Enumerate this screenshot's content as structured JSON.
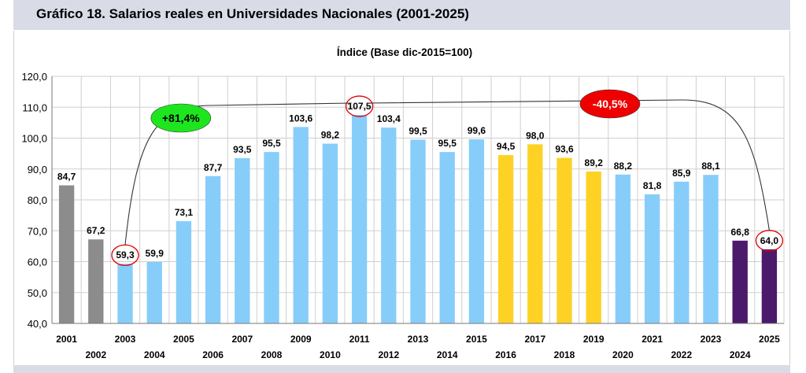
{
  "header": {
    "title": "Gráfico 18. Salarios reales en Universidades Nacionales (2001-2025)"
  },
  "chart_data": {
    "type": "bar",
    "title": "Índice (Base dic-2015=100)",
    "xlabel": "",
    "ylabel": "",
    "ylim": [
      40,
      120
    ],
    "ytick_step": 10,
    "ytick_labels": [
      "40,0",
      "50,0",
      "60,0",
      "70,0",
      "80,0",
      "90,0",
      "100,0",
      "110,0",
      "120,0"
    ],
    "grid": true,
    "categories": [
      "2001",
      "2002",
      "2003",
      "2004",
      "2005",
      "2006",
      "2007",
      "2008",
      "2009",
      "2010",
      "2011",
      "2012",
      "2013",
      "2014",
      "2015",
      "2016",
      "2017",
      "2018",
      "2019",
      "2020",
      "2021",
      "2022",
      "2023",
      "2024",
      "2025"
    ],
    "values": [
      84.7,
      67.2,
      59.3,
      59.9,
      73.1,
      87.7,
      93.5,
      95.5,
      103.6,
      98.2,
      107.5,
      103.4,
      99.5,
      95.5,
      99.6,
      94.5,
      98.0,
      93.6,
      89.2,
      88.2,
      81.8,
      85.9,
      88.1,
      66.8,
      64.0
    ],
    "value_labels": [
      "84,7",
      "67,2",
      "59,3",
      "59,9",
      "73,1",
      "87,7",
      "93,5",
      "95,5",
      "103,6",
      "98,2",
      "107,5",
      "103,4",
      "99,5",
      "95,5",
      "99,6",
      "94,5",
      "98,0",
      "93,6",
      "89,2",
      "88,2",
      "81,8",
      "85,9",
      "88,1",
      "66,8",
      "64,0"
    ],
    "bar_colors": [
      "#8c8c8c",
      "#8c8c8c",
      "#87cdfa",
      "#87cdfa",
      "#87cdfa",
      "#87cdfa",
      "#87cdfa",
      "#87cdfa",
      "#87cdfa",
      "#87cdfa",
      "#87cdfa",
      "#87cdfa",
      "#87cdfa",
      "#87cdfa",
      "#87cdfa",
      "#fdd224",
      "#fdd224",
      "#fdd224",
      "#fdd224",
      "#87cdfa",
      "#87cdfa",
      "#87cdfa",
      "#87cdfa",
      "#4b1a6a",
      "#4b1a6a"
    ],
    "circled_indices": [
      2,
      10,
      24
    ],
    "annotations": [
      {
        "text": "+81,4%",
        "from": "2003",
        "to": "2011",
        "fill": "#1ee61e",
        "text_color": "#000000"
      },
      {
        "text": "-40,5%",
        "from": "2011",
        "to": "2025",
        "fill": "#ee0000",
        "text_color": "#ffffff"
      }
    ],
    "colors": {
      "grid": "#cfcfcf",
      "axis": "#777777",
      "circle": "#e00000"
    }
  }
}
